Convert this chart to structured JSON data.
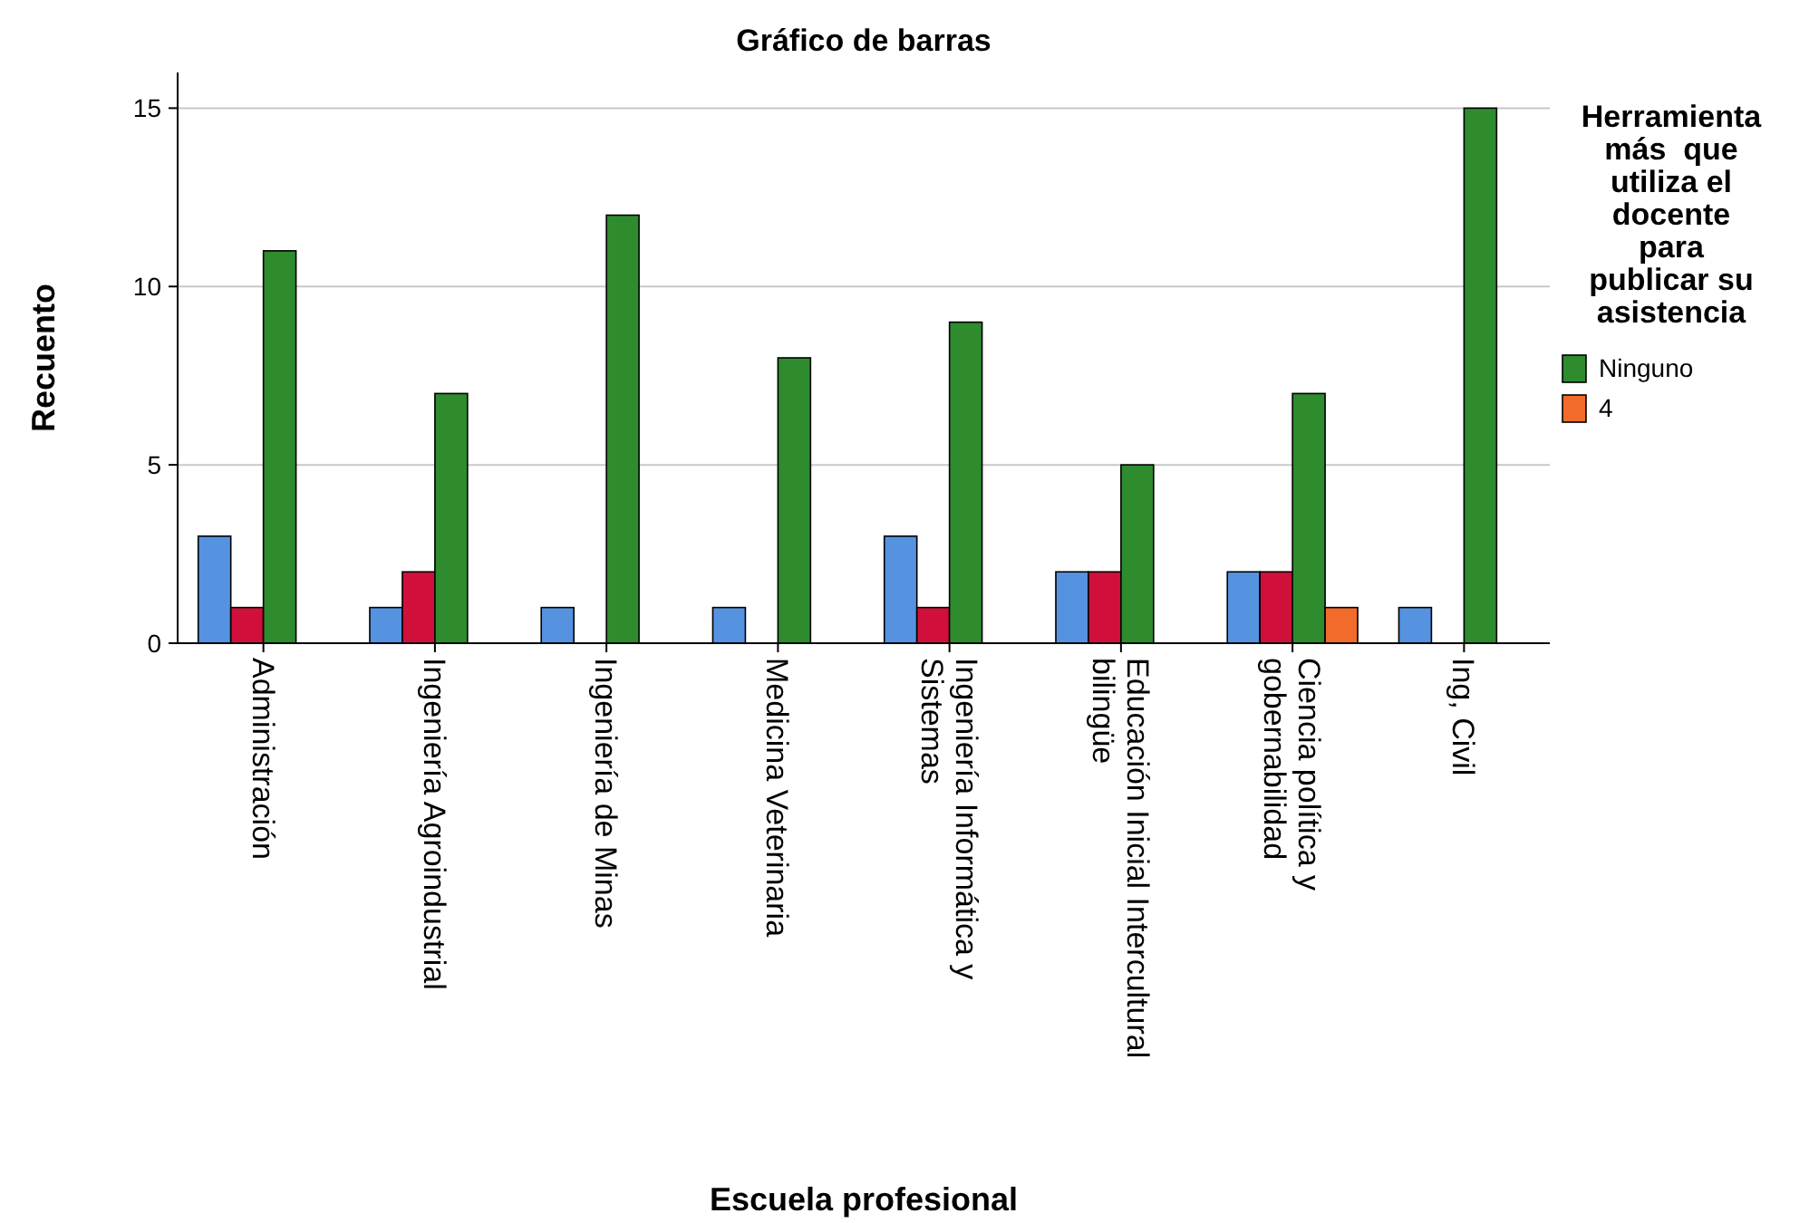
{
  "chart_data": {
    "type": "bar",
    "title": "Gráfico de barras",
    "xlabel": "Escuela profesional",
    "ylabel": "Recuento",
    "legend_title": "Herramienta más  que utiliza el docente para publicar su asistencia",
    "categories": [
      "Administración",
      "Ingeniería Agroindustrial",
      "Ingeniería de Minas",
      "Medicina Veterinaria",
      "Ingeniería Informática y Sistemas",
      "Educación Inicial Intercultural bilingüe",
      "Ciencia política y gobernabilidad",
      "Ing, Civil"
    ],
    "series": [
      {
        "color": "#5592e0",
        "values": [
          3,
          1,
          1,
          1,
          3,
          2,
          2,
          1
        ]
      },
      {
        "color": "#d0103a",
        "values": [
          1,
          2,
          null,
          null,
          1,
          2,
          2,
          null
        ]
      },
      {
        "name": "Ninguno",
        "color": "#2e8b2e",
        "values": [
          11,
          7,
          12,
          8,
          9,
          5,
          7,
          15
        ]
      },
      {
        "name": "4",
        "color": "#f26b2a",
        "values": [
          null,
          null,
          null,
          null,
          null,
          null,
          1,
          null
        ]
      }
    ],
    "ylim": [
      0,
      16
    ],
    "yticks": [
      0,
      5,
      10,
      15
    ],
    "grid": "y",
    "legend": "right"
  }
}
